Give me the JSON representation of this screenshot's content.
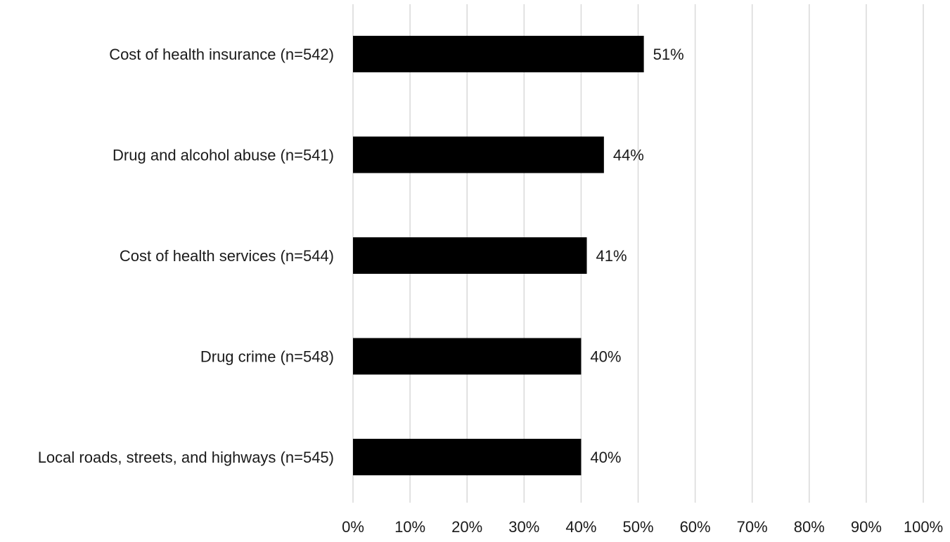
{
  "chart_data": {
    "type": "bar",
    "orientation": "horizontal",
    "categories": [
      "Cost of health insurance (n=542)",
      "Drug and alcohol abuse (n=541)",
      "Cost of health services (n=544)",
      "Drug crime (n=548)",
      "Local roads, streets, and highways (n=545)"
    ],
    "values": [
      51,
      44,
      41,
      40,
      40
    ],
    "data_labels": [
      "51%",
      "44%",
      "41%",
      "40%",
      "40%"
    ],
    "xlim": [
      0,
      100
    ],
    "x_ticks": [
      0,
      10,
      20,
      30,
      40,
      50,
      60,
      70,
      80,
      90,
      100
    ],
    "x_tick_labels": [
      "0%",
      "10%",
      "20%",
      "30%",
      "40%",
      "50%",
      "60%",
      "70%",
      "80%",
      "90%",
      "100%"
    ],
    "grid": true,
    "legend": "none",
    "bar_color": "#000000",
    "grid_color": "#d9d9d9",
    "title": "",
    "xlabel": "",
    "ylabel": ""
  }
}
